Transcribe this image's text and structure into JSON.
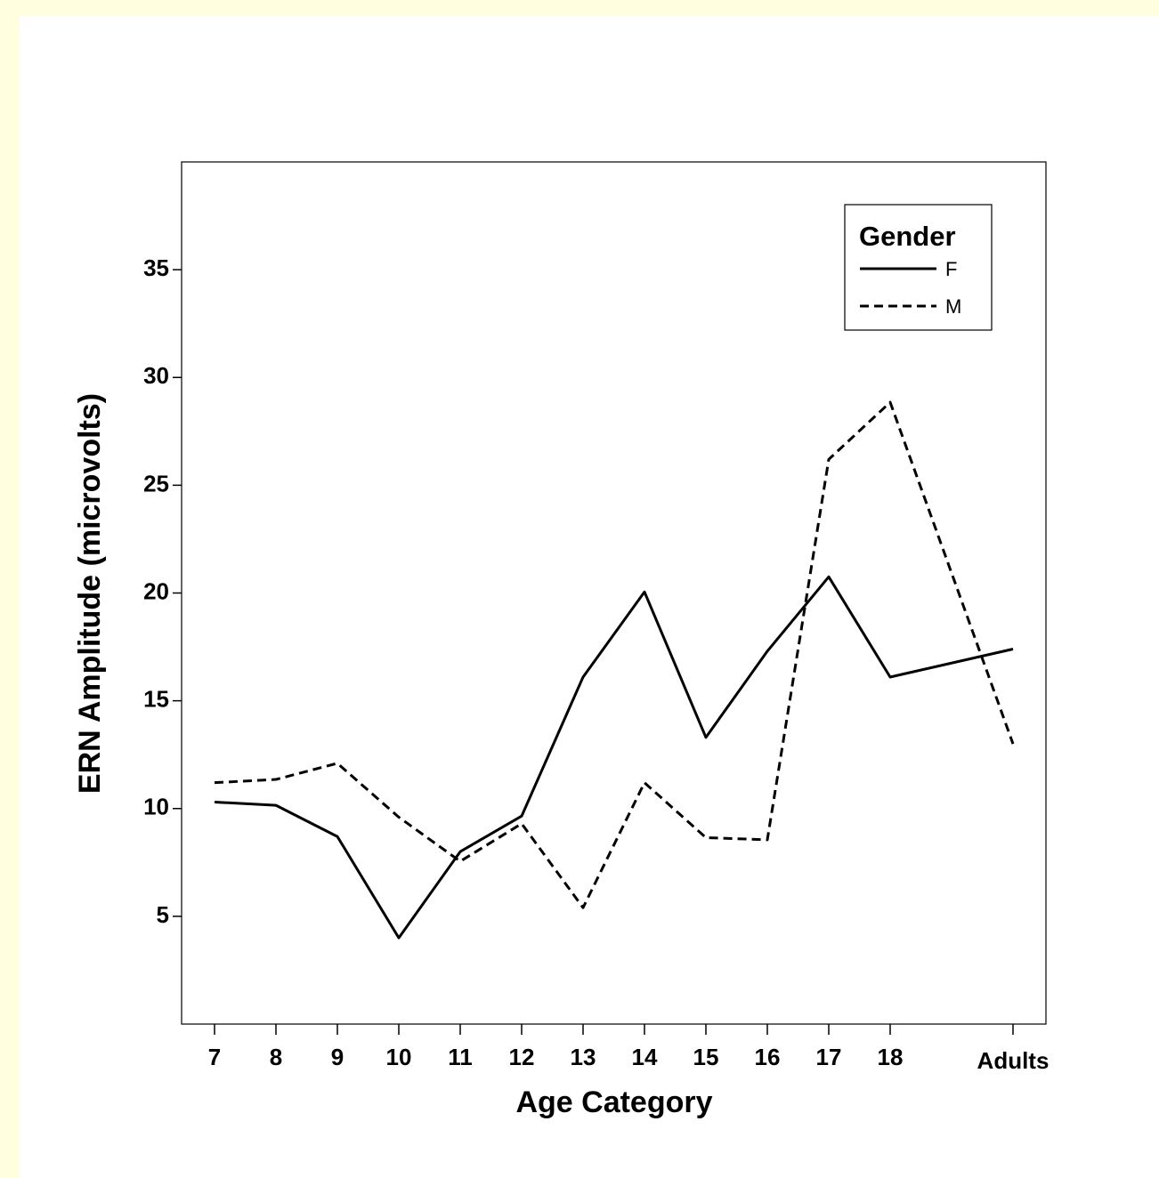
{
  "chart_data": {
    "type": "line",
    "x_label": "Age Category",
    "y_label": "ERN Amplitude (microvolts)",
    "categories": [
      "7",
      "8",
      "9",
      "10",
      "11",
      "12",
      "13",
      "14",
      "15",
      "16",
      "17",
      "18",
      "Adults"
    ],
    "series": [
      {
        "name": "F",
        "color": "#000000",
        "dash": "solid",
        "values": [
          10.3,
          10.15,
          8.7,
          4.0,
          8.0,
          9.65,
          16.1,
          20.05,
          13.3,
          17.3,
          20.75,
          16.1,
          17.4
        ]
      },
      {
        "name": "M",
        "color": "#000000",
        "dash": "dashed",
        "values": [
          11.2,
          11.35,
          12.1,
          9.6,
          7.55,
          9.3,
          5.4,
          11.2,
          8.65,
          8.55,
          26.2,
          28.85,
          13.0
        ]
      }
    ],
    "legend_title": "Gender",
    "legend": "upper right",
    "ylim": [
      0,
      40
    ],
    "yticks": [
      5,
      10,
      15,
      20,
      25,
      30,
      35
    ],
    "grid": false
  }
}
